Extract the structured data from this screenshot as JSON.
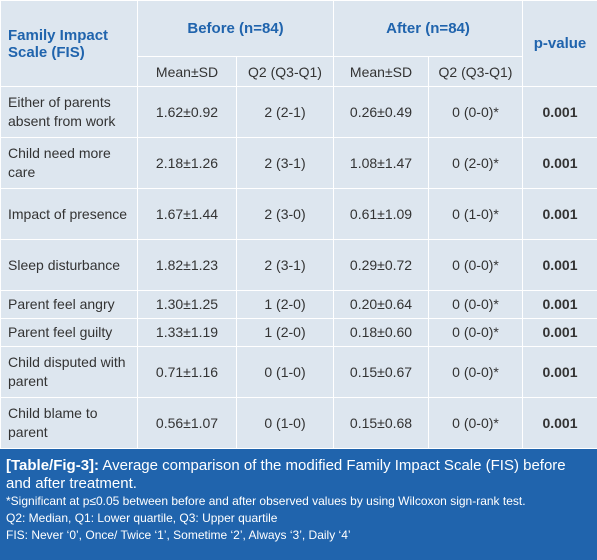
{
  "table": {
    "header": {
      "title": "Family Impact Scale (FIS)",
      "groups": [
        "Before (n=84)",
        "After (n=84)"
      ],
      "pvalue": "p-value",
      "subheaders": [
        "Mean±SD",
        "Q2 (Q3-Q1)",
        "Mean±SD",
        "Q2 (Q3-Q1)"
      ]
    },
    "rows": [
      [
        "Either of parents absent from work",
        "1.62±0.92",
        "2 (2-1)",
        "0.26±0.49",
        "0 (0-0)*",
        "0.001"
      ],
      [
        "Child need more care",
        "2.18±1.26",
        "2 (3-1)",
        "1.08±1.47",
        "0 (2-0)*",
        "0.001"
      ],
      [
        "Impact of presence",
        "1.67±1.44",
        "2 (3-0)",
        "0.61±1.09",
        "0 (1-0)*",
        "0.001"
      ],
      [
        "Sleep disturbance",
        "1.82±1.23",
        "2 (3-1)",
        "0.29±0.72",
        "0 (0-0)*",
        "0.001"
      ],
      [
        "Parent feel angry",
        "1.30±1.25",
        "1 (2-0)",
        "0.20±0.64",
        "0 (0-0)*",
        "0.001"
      ],
      [
        "Parent feel guilty",
        "1.33±1.19",
        "1 (2-0)",
        "0.18±0.60",
        "0 (0-0)*",
        "0.001"
      ],
      [
        "Child disputed with parent",
        "0.71±1.16",
        "0 (1-0)",
        "0.15±0.67",
        "0 (0-0)*",
        "0.001"
      ],
      [
        "Child blame to parent",
        "0.56±1.07",
        "0 (1-0)",
        "0.15±0.68",
        "0 (0-0)*",
        "0.001"
      ]
    ]
  },
  "caption": {
    "label": "[Table/Fig-3]:",
    "text": "Average comparison of the modified Family Impact Scale (FIS) before and after treatment.",
    "notes": [
      "*Significant at p≤0.05 between before and after observed values by using Wilcoxon sign-rank test.",
      "Q2: Median, Q1: Lower quartile, Q3: Upper quartile",
      "FIS: Never ‘0’, Once/ Twice ‘1’, Sometime ‘2’, Always ‘3’, Daily ‘4’"
    ]
  }
}
